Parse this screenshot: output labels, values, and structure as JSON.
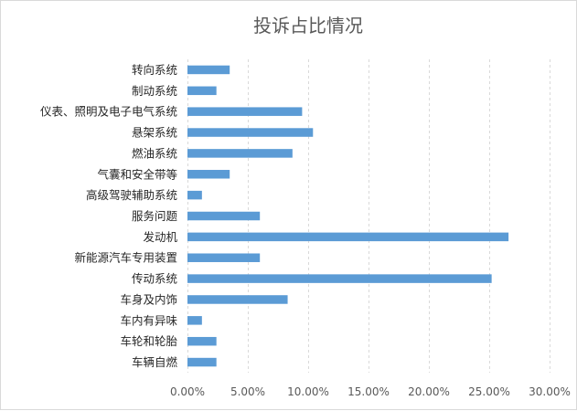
{
  "chart_data": {
    "type": "bar",
    "orientation": "horizontal",
    "title": "投诉占比情况",
    "categories": [
      "转向系统",
      "制动系统",
      "仪表、照明及电子电气系统",
      "悬架系统",
      "燃油系统",
      "气囊和安全带等",
      "高级驾驶辅助系统",
      "服务问题",
      "发动机",
      "新能源汽车专用装置",
      "传动系统",
      "车身及内饰",
      "车内有异味",
      "车轮和轮胎",
      "车辆自燃"
    ],
    "values": [
      3.5,
      2.4,
      9.5,
      10.4,
      8.7,
      3.5,
      1.2,
      6.0,
      26.6,
      6.0,
      25.2,
      8.3,
      1.2,
      2.4,
      2.4
    ],
    "xlim": [
      0,
      30
    ],
    "xticks": [
      0,
      5,
      10,
      15,
      20,
      25,
      30
    ],
    "xtick_labels": [
      "0.00%",
      "5.00%",
      "10.00%",
      "15.00%",
      "20.00%",
      "25.00%",
      "30.00%"
    ],
    "xlabel": "",
    "ylabel": "",
    "grid": "vertical dashed",
    "legend": "none",
    "bar_color": "#5b9bd5"
  }
}
